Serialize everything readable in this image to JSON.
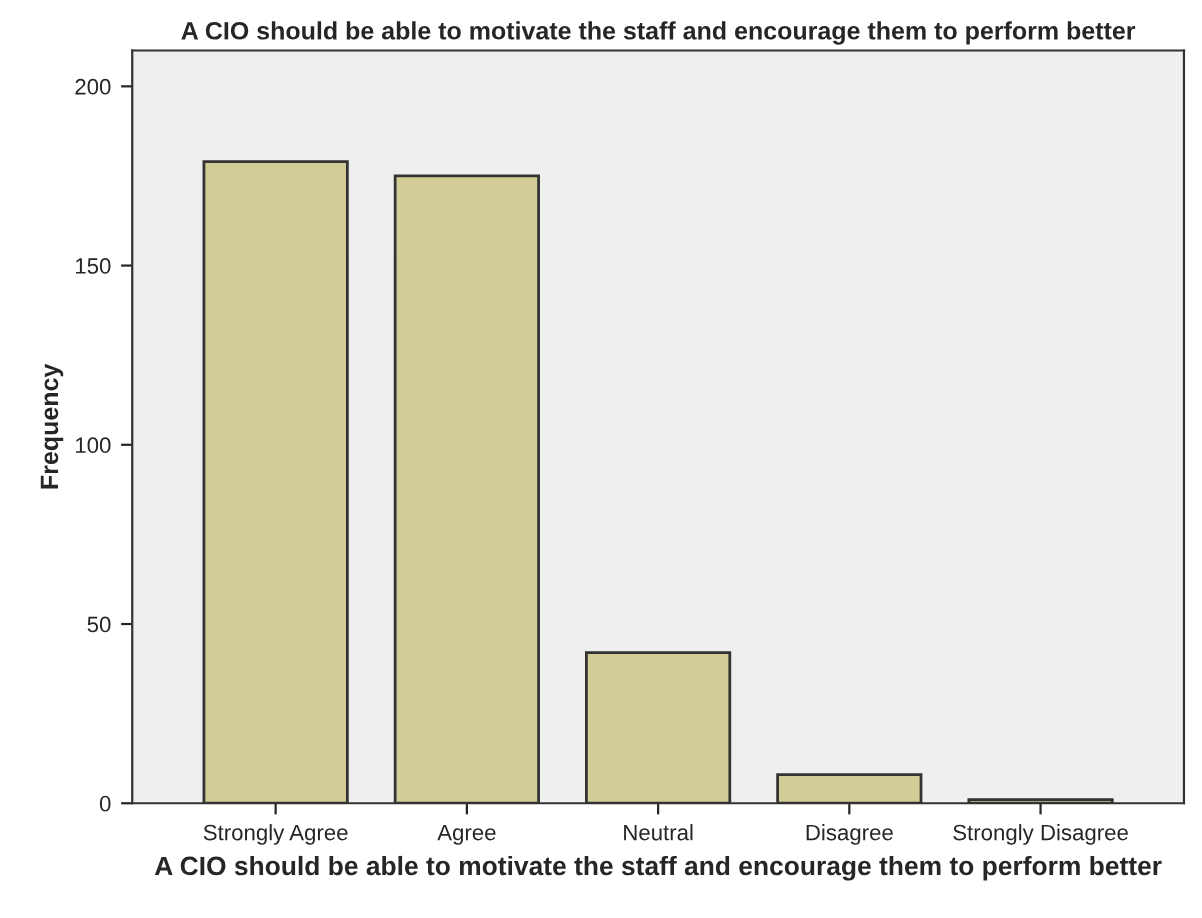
{
  "chart_data": {
    "type": "bar",
    "title": "A CIO should be able to motivate the staff and encourage them to perform better",
    "xlabel": "A CIO should be able to motivate the staff and encourage them to perform better",
    "ylabel": "Frequency",
    "categories": [
      "Strongly Agree",
      "Agree",
      "Neutral",
      "Disagree",
      "Strongly Disagree"
    ],
    "values": [
      179,
      175,
      42,
      8,
      1
    ],
    "color": "#d2cd96",
    "ylim": [
      0,
      210
    ],
    "yticks": [
      0,
      50,
      100,
      150,
      200
    ],
    "grid": false
  }
}
